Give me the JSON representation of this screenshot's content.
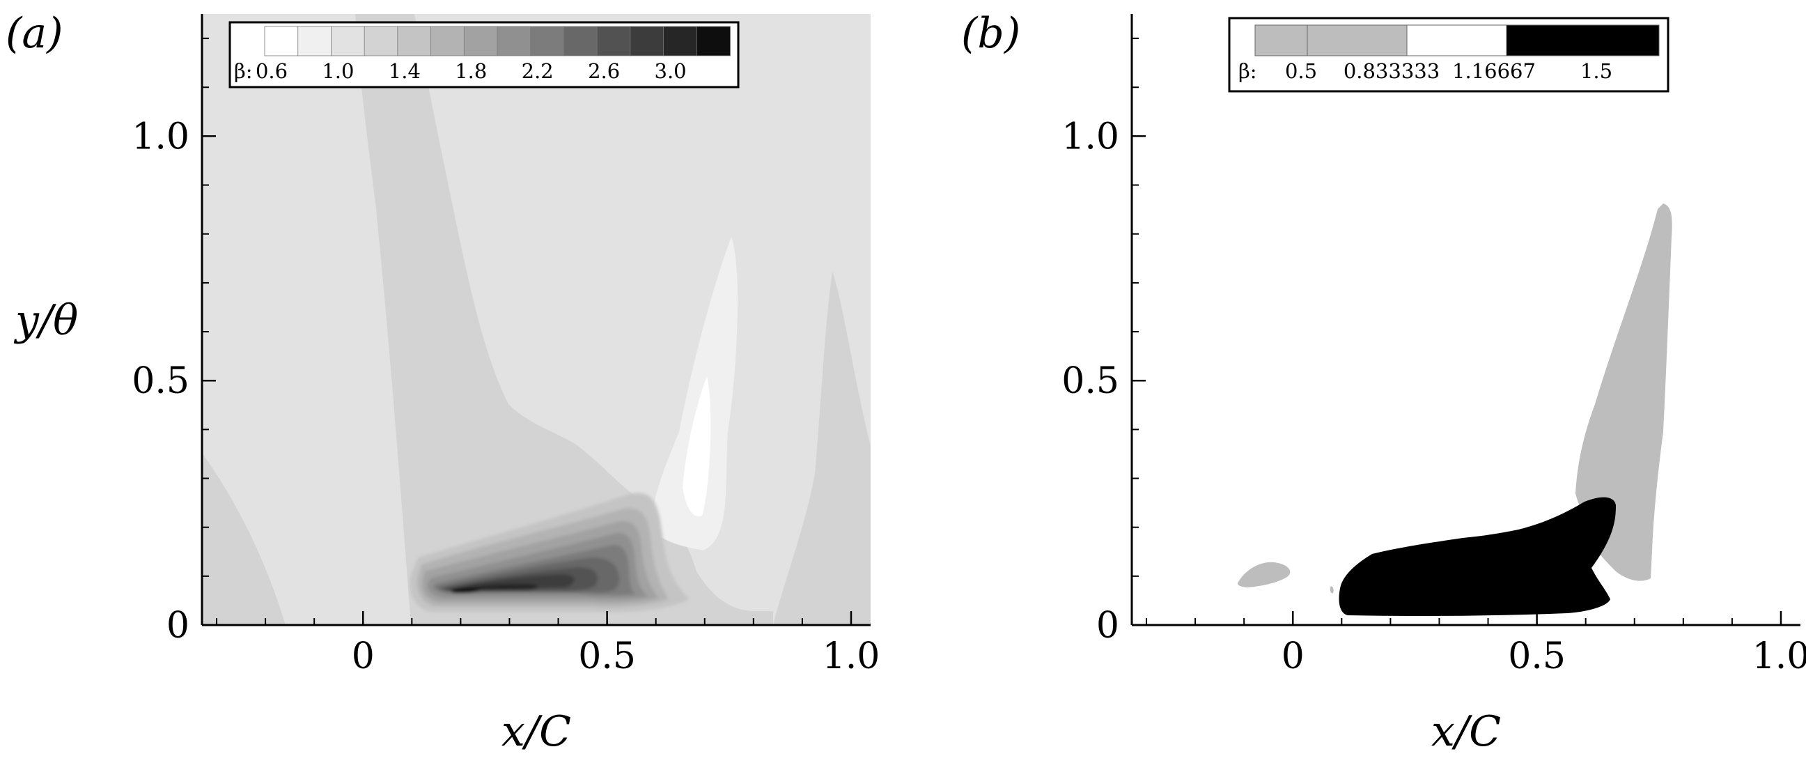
{
  "chart_data": [
    {
      "type": "heatmap",
      "panel_label": "(a)",
      "xlabel": "x/C",
      "ylabel": "y/θ",
      "xlim": [
        -0.33,
        1.04
      ],
      "ylim": [
        0,
        1.25
      ],
      "xticks": [
        {
          "value": 0,
          "label": "0"
        },
        {
          "value": 0.5,
          "label": "0.5"
        },
        {
          "value": 1.0,
          "label": "1.0"
        }
      ],
      "yticks": [
        {
          "value": 0,
          "label": "0"
        },
        {
          "value": 0.5,
          "label": "0.5"
        },
        {
          "value": 1.0,
          "label": "1.0"
        }
      ],
      "legend": {
        "title": "β:",
        "placement": "top",
        "levels": [
          0.6,
          0.8,
          1.0,
          1.2,
          1.4,
          1.6,
          1.8,
          2.0,
          2.2,
          2.4,
          2.6,
          2.8,
          3.0,
          3.2
        ],
        "tick_labels": [
          "0.6",
          "1.0",
          "1.4",
          "1.8",
          "2.2",
          "2.6",
          "3.0"
        ],
        "colors": [
          "#ffffff",
          "#f0f0f0",
          "#e2e2e2",
          "#d3d3d3",
          "#c4c4c4",
          "#b3b3b3",
          "#a2a2a2",
          "#909090",
          "#7c7c7c",
          "#686868",
          "#525252",
          "#3c3c3c",
          "#262626",
          "#0e0e0e"
        ]
      },
      "regions": [
        {
          "beta": "0.8",
          "description": "lighter area near x/C 0.6-0.75, y/θ 0.1-0.8"
        },
        {
          "beta": "0.6",
          "description": "lightest core near x/C 0.65-0.7, y/θ 0.2-0.5"
        },
        {
          "beta": "1.2",
          "description": "band from x/C 0 to 0.5 up to y/θ 0.45"
        },
        {
          "beta": "3.0",
          "description": "peak near x/C 0.2, y/θ 0.05"
        }
      ]
    },
    {
      "type": "heatmap",
      "panel_label": "(b)",
      "xlabel": "x/C",
      "ylabel": "",
      "xlim": [
        -0.33,
        1.04
      ],
      "ylim": [
        0,
        1.25
      ],
      "xticks": [
        {
          "value": 0,
          "label": "0"
        },
        {
          "value": 0.5,
          "label": "0.5"
        },
        {
          "value": 1.0,
          "label": "1.0"
        }
      ],
      "yticks": [
        {
          "value": 0,
          "label": "0"
        },
        {
          "value": 0.5,
          "label": "0.5"
        },
        {
          "value": 1.0,
          "label": "1.0"
        }
      ],
      "legend": {
        "title": "β:",
        "placement": "top",
        "levels": [
          0.5,
          0.833333,
          1.16667,
          1.5
        ],
        "tick_labels": [
          "0.5",
          "0.833333",
          "1.16667",
          "1.5"
        ],
        "colors": [
          "#bdbdbd",
          "#bdbdbd",
          "#ffffff",
          "#000000"
        ]
      },
      "regions": [
        {
          "beta": "< 0.833333",
          "color": "#bdbdbd",
          "description": "streak from x/C 0.6 to 0.77, y/θ 0.1 to 0.86"
        },
        {
          "beta": "< 0.833333",
          "color": "#bdbdbd",
          "description": "small patch near x/C -0.05, y/θ 0.1"
        },
        {
          "beta": "> 1.16667",
          "color": "#000000",
          "description": "region x/C 0.1 to 0.65, y/θ 0.02 to 0.26"
        }
      ]
    }
  ]
}
